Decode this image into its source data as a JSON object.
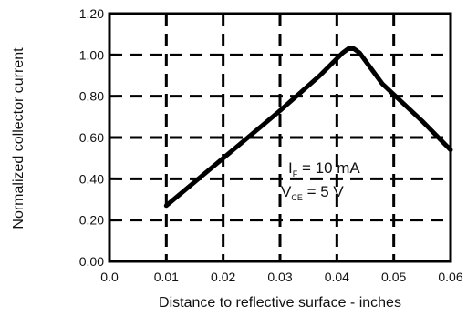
{
  "chart_data": {
    "type": "line",
    "title": "",
    "xlabel": "Distance to reflective surface - inches",
    "ylabel": "Normalized collector current",
    "xlim": [
      0.0,
      0.06
    ],
    "ylim": [
      0.0,
      1.2
    ],
    "x_ticks": [
      0.0,
      0.01,
      0.02,
      0.03,
      0.04,
      0.05,
      0.06
    ],
    "x_tick_labels": [
      "0.0",
      "0.01",
      "0.02",
      "0.03",
      "0.04",
      "0.05",
      "0.06"
    ],
    "y_ticks": [
      0.0,
      0.2,
      0.4,
      0.6,
      0.8,
      1.0,
      1.2
    ],
    "y_tick_labels": [
      "0.00",
      "0.20",
      "0.40",
      "0.60",
      "0.80",
      "1.00",
      "1.20"
    ],
    "grid": true,
    "grid_style": "dashed",
    "series": [
      {
        "name": "",
        "x": [
          0.01,
          0.02,
          0.03,
          0.037,
          0.041,
          0.042,
          0.043,
          0.044,
          0.048,
          0.055,
          0.06
        ],
        "y": [
          0.27,
          0.5,
          0.73,
          0.9,
          1.01,
          1.03,
          1.03,
          1.01,
          0.86,
          0.68,
          0.54
        ]
      }
    ],
    "annotation": {
      "line1_main": "I",
      "line1_sub": "F",
      "line1_rest": " = 10 mA",
      "line2_main": "V",
      "line2_sub": "CE",
      "line2_rest": " = 5 V"
    }
  }
}
